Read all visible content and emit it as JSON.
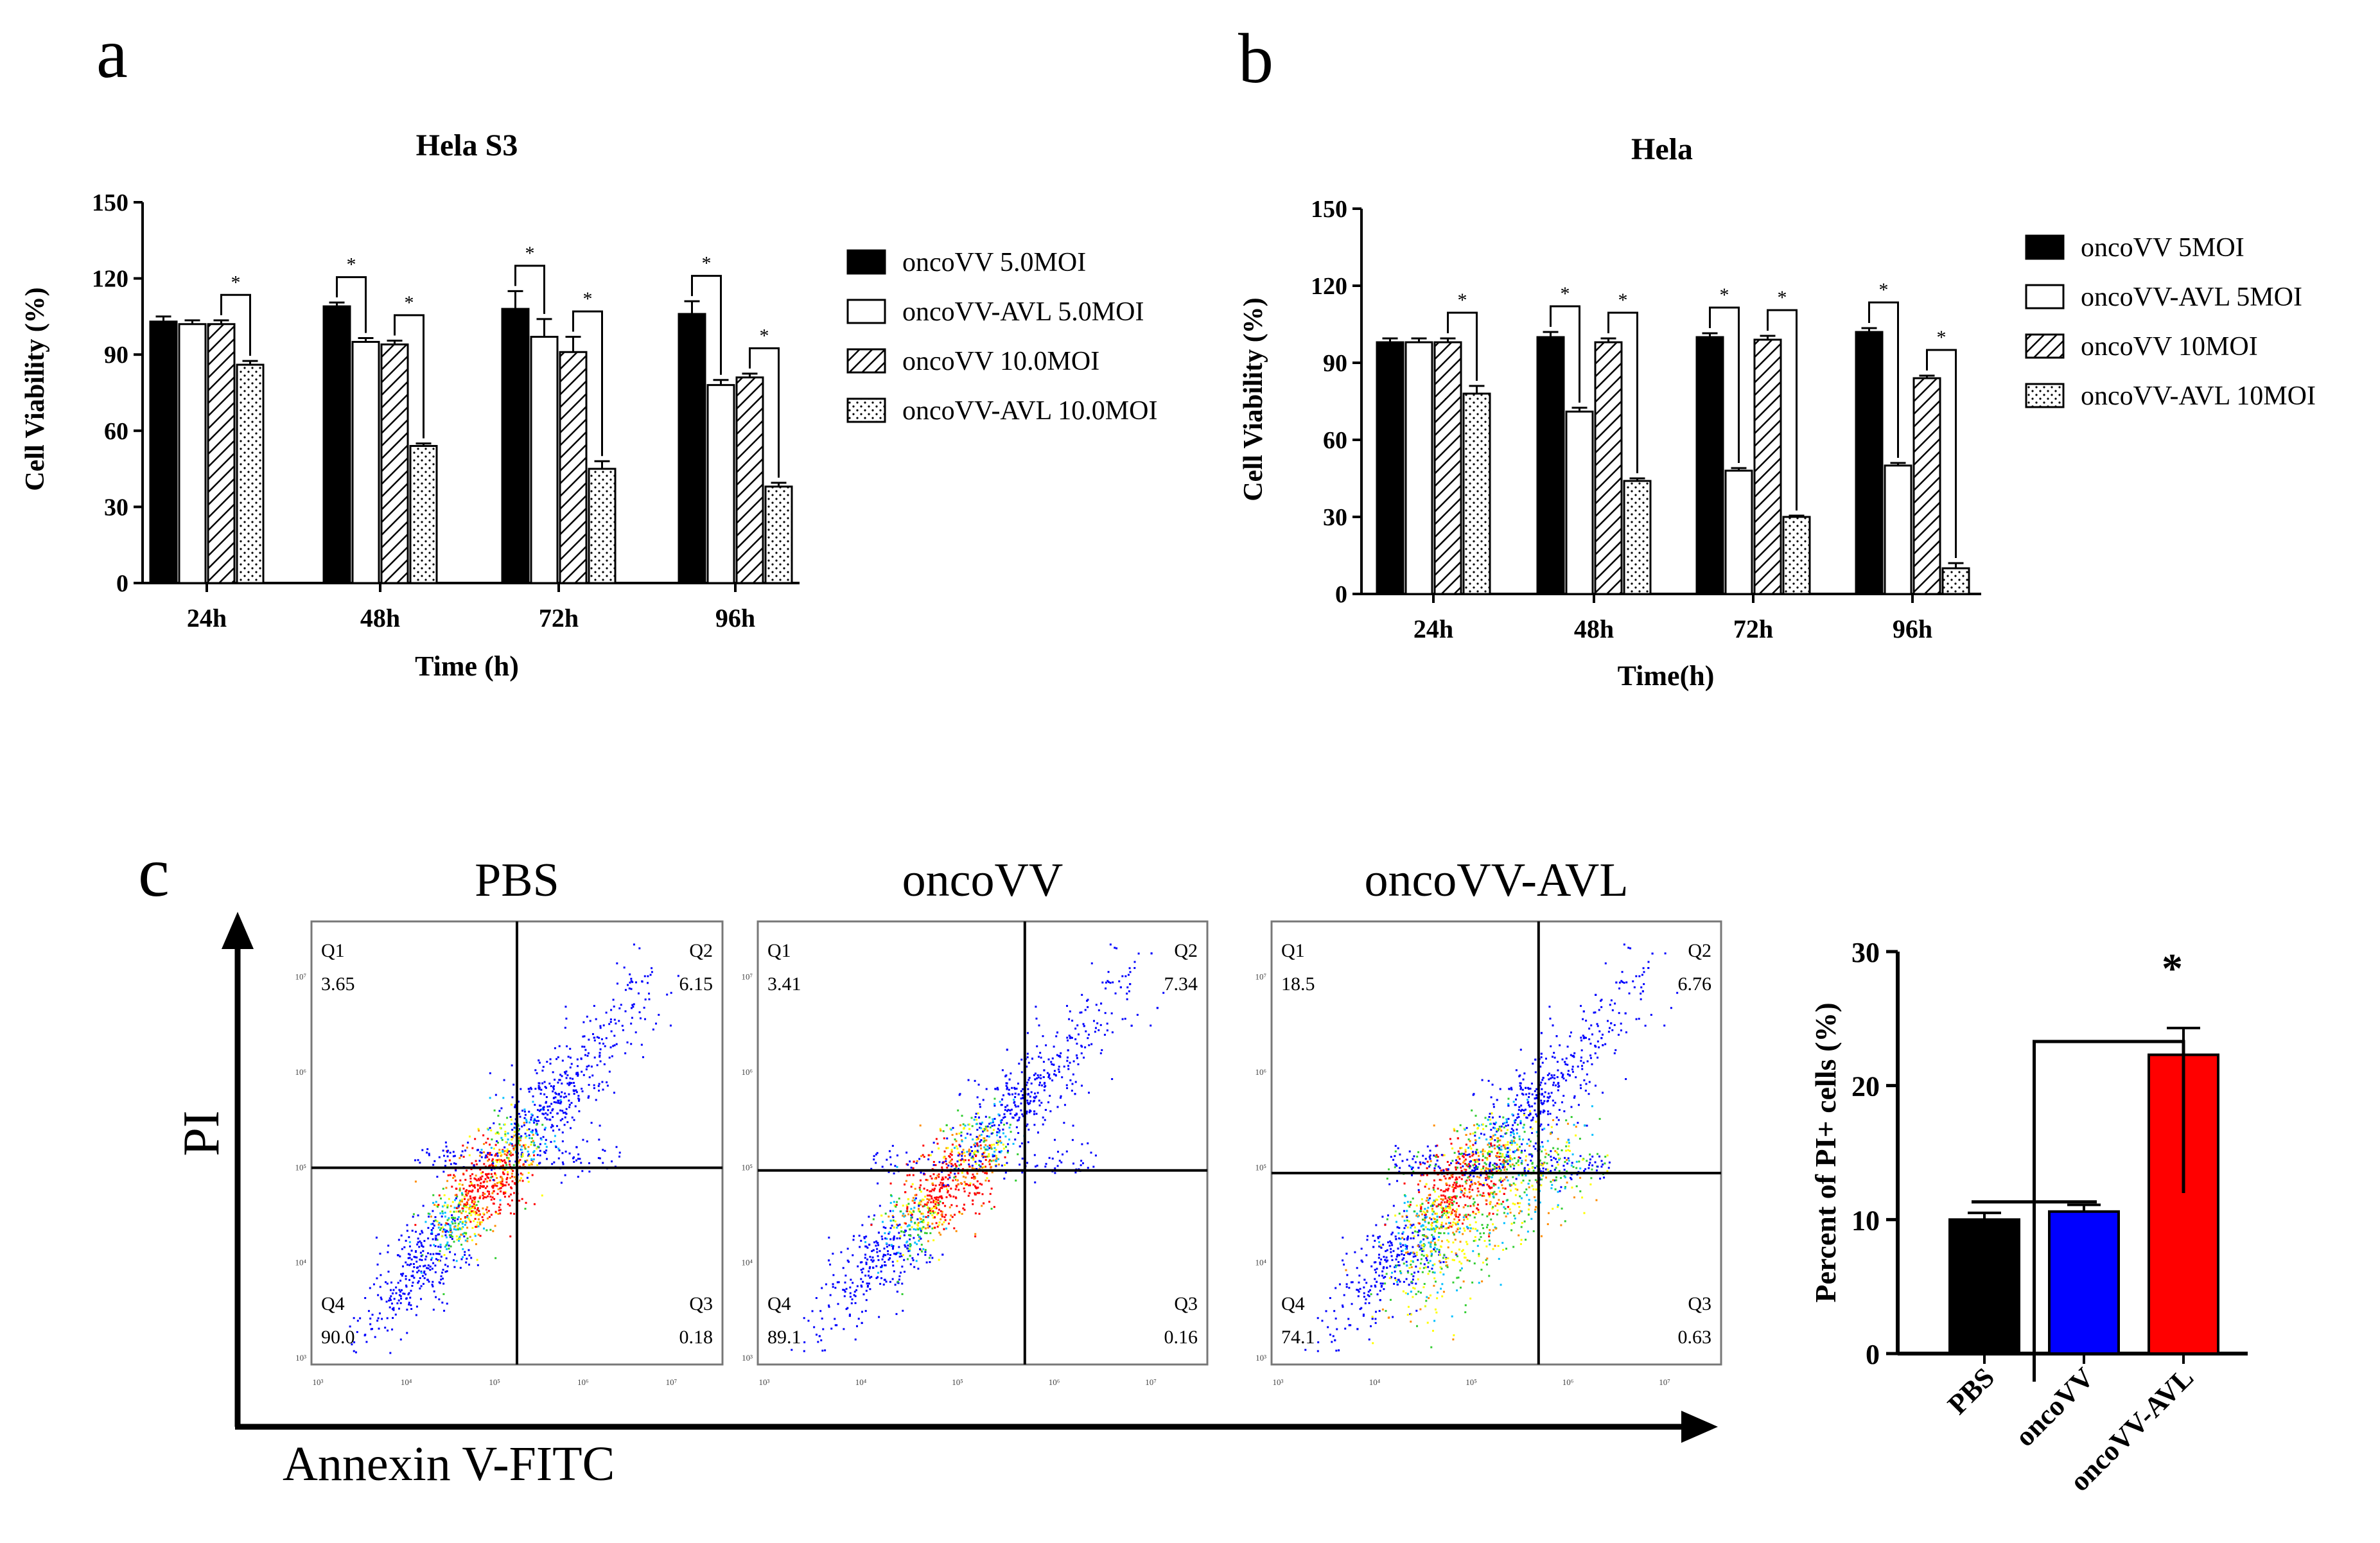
{
  "panel_labels": {
    "a": "a",
    "b": "b",
    "c": "c"
  },
  "chart_data": [
    {
      "type": "bar",
      "title": "Hela S3",
      "xlabel": "Time (h)",
      "ylabel": "Cell Viability (%)",
      "ylim": [
        0,
        150
      ],
      "yticks": [
        "0",
        "30",
        "60",
        "90",
        "120",
        "150"
      ],
      "categories": [
        "24h",
        "48h",
        "72h",
        "96h"
      ],
      "series": [
        {
          "name": "oncoVV 5.0MOI",
          "pattern": "solid-black",
          "values": [
            103,
            109,
            108,
            106
          ],
          "errors": [
            2,
            1.5,
            7,
            5
          ]
        },
        {
          "name": "oncoVV-AVL 5.0MOI",
          "pattern": "white",
          "values": [
            102,
            95,
            97,
            78
          ],
          "errors": [
            1.5,
            1.5,
            7,
            2
          ]
        },
        {
          "name": "oncoVV 10.0MOI",
          "pattern": "hatch",
          "values": [
            102,
            94,
            91,
            81
          ],
          "errors": [
            1.5,
            1.5,
            6,
            1.5
          ]
        },
        {
          "name": "oncoVV-AVL 10.0MOI",
          "pattern": "dots",
          "values": [
            86,
            54,
            45,
            38
          ],
          "errors": [
            1.5,
            1,
            3,
            1.5
          ]
        }
      ],
      "significance": [
        "*",
        "*",
        "*",
        "*",
        "*",
        "*",
        "*"
      ],
      "legend": "right"
    },
    {
      "type": "bar",
      "title": "Hela",
      "xlabel": "Time(h)",
      "ylabel": "Cell Viability (%)",
      "ylim": [
        0,
        150
      ],
      "yticks": [
        "0",
        "30",
        "60",
        "90",
        "120",
        "150"
      ],
      "categories": [
        "24h",
        "48h",
        "72h",
        "96h"
      ],
      "series": [
        {
          "name": "oncoVV 5MOI",
          "pattern": "solid-black",
          "values": [
            98,
            100,
            100,
            102
          ],
          "errors": [
            1.5,
            2,
            1.5,
            1.5
          ]
        },
        {
          "name": "oncoVV-AVL 5MOI",
          "pattern": "white",
          "values": [
            98,
            71,
            48,
            50
          ],
          "errors": [
            1.5,
            1.5,
            1,
            1
          ]
        },
        {
          "name": "oncoVV 10MOI",
          "pattern": "hatch",
          "values": [
            98,
            98,
            99,
            84
          ],
          "errors": [
            1.5,
            1.5,
            1.5,
            1
          ]
        },
        {
          "name": "oncoVV-AVL 10MOI",
          "pattern": "dots",
          "values": [
            78,
            44,
            30,
            10
          ],
          "errors": [
            3,
            1,
            0.5,
            2
          ]
        }
      ],
      "significance": [
        "*",
        "*",
        "*",
        "*",
        "*",
        "*",
        "*"
      ],
      "legend": "right"
    },
    {
      "type": "scatter",
      "subtype": "flow-cytometry quadrant plots",
      "xlabel": "Annexin V-FITC",
      "ylabel": "PI",
      "axis_tick_labels": [
        "10³",
        "10⁴",
        "10⁵",
        "10⁶",
        "10⁷"
      ],
      "panels": [
        {
          "title": "PBS",
          "quadrants": {
            "Q1": "3.65",
            "Q2": "6.15",
            "Q3": "0.18",
            "Q4": "90.0"
          }
        },
        {
          "title": "oncoVV",
          "quadrants": {
            "Q1": "3.41",
            "Q2": "7.34",
            "Q3": "0.16",
            "Q4": "89.1"
          }
        },
        {
          "title": "oncoVV-AVL",
          "quadrants": {
            "Q1": "18.5",
            "Q2": "6.76",
            "Q3": "0.63",
            "Q4": "74.1"
          }
        }
      ]
    },
    {
      "type": "bar",
      "ylabel": "Percent of  PI+ cells (%)",
      "ylim": [
        0,
        30
      ],
      "yticks": [
        "0",
        "10",
        "20",
        "30"
      ],
      "categories": [
        "PBS",
        "oncoVV",
        "oncoVV-AVL"
      ],
      "values": [
        10,
        10.6,
        22.3
      ],
      "errors": [
        0.5,
        0.5,
        2
      ],
      "colors": [
        "#000000",
        "#0000ff",
        "#ff0000"
      ],
      "significance": "*"
    }
  ]
}
